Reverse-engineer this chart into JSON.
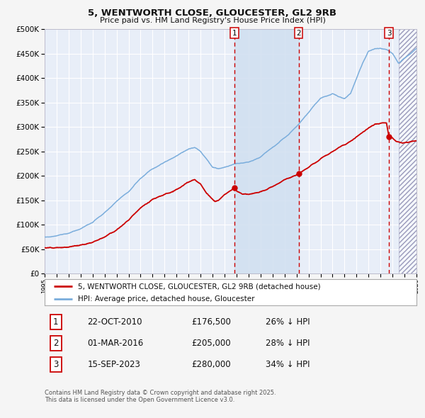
{
  "title": "5, WENTWORTH CLOSE, GLOUCESTER, GL2 9RB",
  "subtitle": "Price paid vs. HM Land Registry's House Price Index (HPI)",
  "bg_color": "#f5f5f5",
  "plot_bg_color": "#e8eef8",
  "grid_color": "#ffffff",
  "hpi_line_color": "#7aaddc",
  "price_line_color": "#cc0000",
  "vline_color": "#cc0000",
  "shade_color": "#d0dff0",
  "hatch_color": "#9999bb",
  "transactions": [
    {
      "label": "1",
      "date_str": "22-OCT-2010",
      "date_x": 2010.81,
      "price": 176500,
      "pct": "26%",
      "direction": "↓"
    },
    {
      "label": "2",
      "date_str": "01-MAR-2016",
      "date_x": 2016.17,
      "price": 205000,
      "pct": "28%",
      "direction": "↓"
    },
    {
      "label": "3",
      "date_str": "15-SEP-2023",
      "date_x": 2023.71,
      "price": 280000,
      "pct": "34%",
      "direction": "↓"
    }
  ],
  "xmin": 1995,
  "xmax": 2026,
  "ymin": 0,
  "ymax": 500000,
  "yticks": [
    0,
    50000,
    100000,
    150000,
    200000,
    250000,
    300000,
    350000,
    400000,
    450000,
    500000
  ],
  "legend_label_red": "5, WENTWORTH CLOSE, GLOUCESTER, GL2 9RB (detached house)",
  "legend_label_blue": "HPI: Average price, detached house, Gloucester",
  "footnote": "Contains HM Land Registry data © Crown copyright and database right 2025.\nThis data is licensed under the Open Government Licence v3.0.",
  "hatch_start": 2024.5
}
